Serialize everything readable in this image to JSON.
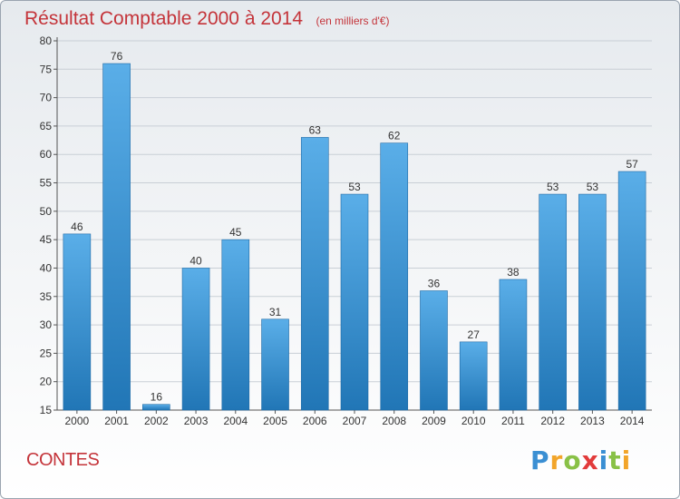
{
  "title": "Résultat Comptable 2000 à 2014",
  "subtitle": "(en milliers d'€)",
  "commune": "CONTES",
  "brand": "Proxiti",
  "colors": {
    "title": "#c4343a",
    "bar_light": "#5aaee8",
    "bar_dark": "#2176b6",
    "grid": "#c9cfd6"
  },
  "chart_data": {
    "type": "bar",
    "categories": [
      "2000",
      "2001",
      "2002",
      "2003",
      "2004",
      "2005",
      "2006",
      "2007",
      "2008",
      "2009",
      "2010",
      "2011",
      "2012",
      "2013",
      "2014"
    ],
    "values": [
      46,
      76,
      16,
      40,
      45,
      31,
      63,
      53,
      62,
      36,
      27,
      38,
      53,
      53,
      57
    ],
    "ylim": [
      15,
      80
    ],
    "yticks": [
      15,
      20,
      25,
      30,
      35,
      40,
      45,
      50,
      55,
      60,
      65,
      70,
      75,
      80
    ],
    "grid": true,
    "data_labels": true
  }
}
